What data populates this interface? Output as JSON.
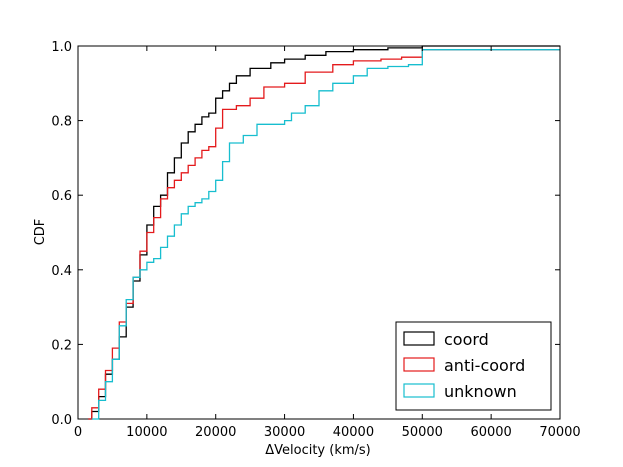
{
  "chart_data": {
    "type": "line",
    "step": true,
    "xlabel": "ΔVelocity (km/s)",
    "ylabel": "CDF",
    "xlim": [
      0,
      70000
    ],
    "ylim": [
      0,
      1.0
    ],
    "xticks": [
      "0",
      "10000",
      "20000",
      "30000",
      "40000",
      "50000",
      "60000",
      "70000"
    ],
    "yticks": [
      "0.0",
      "0.2",
      "0.4",
      "0.6",
      "0.8",
      "1.0"
    ],
    "grid": false,
    "legend_position": "bottom-right",
    "series": [
      {
        "name": "coord",
        "color": "#000000",
        "points": [
          [
            1500,
            0
          ],
          [
            2000,
            0.02
          ],
          [
            3000,
            0.06
          ],
          [
            4000,
            0.12
          ],
          [
            5000,
            0.16
          ],
          [
            6000,
            0.22
          ],
          [
            7000,
            0.3
          ],
          [
            8000,
            0.37
          ],
          [
            9000,
            0.44
          ],
          [
            10000,
            0.52
          ],
          [
            11000,
            0.57
          ],
          [
            12000,
            0.6
          ],
          [
            13000,
            0.66
          ],
          [
            14000,
            0.7
          ],
          [
            15000,
            0.74
          ],
          [
            16000,
            0.77
          ],
          [
            17000,
            0.79
          ],
          [
            18000,
            0.81
          ],
          [
            19000,
            0.82
          ],
          [
            20000,
            0.86
          ],
          [
            21000,
            0.88
          ],
          [
            22000,
            0.9
          ],
          [
            23000,
            0.92
          ],
          [
            25000,
            0.94
          ],
          [
            28000,
            0.955
          ],
          [
            30000,
            0.965
          ],
          [
            33000,
            0.975
          ],
          [
            36000,
            0.985
          ],
          [
            40000,
            0.99
          ],
          [
            45000,
            0.995
          ],
          [
            50000,
            1.0
          ],
          [
            70000,
            1.0
          ]
        ]
      },
      {
        "name": "anti-coord",
        "color": "#e41a1c",
        "points": [
          [
            1500,
            0
          ],
          [
            2000,
            0.03
          ],
          [
            3000,
            0.08
          ],
          [
            4000,
            0.13
          ],
          [
            5000,
            0.19
          ],
          [
            6000,
            0.26
          ],
          [
            7000,
            0.31
          ],
          [
            8000,
            0.38
          ],
          [
            9000,
            0.45
          ],
          [
            10000,
            0.5
          ],
          [
            11000,
            0.54
          ],
          [
            12000,
            0.59
          ],
          [
            13000,
            0.62
          ],
          [
            14000,
            0.64
          ],
          [
            15000,
            0.66
          ],
          [
            16000,
            0.68
          ],
          [
            17000,
            0.7
          ],
          [
            18000,
            0.72
          ],
          [
            19000,
            0.73
          ],
          [
            20000,
            0.78
          ],
          [
            21000,
            0.83
          ],
          [
            23000,
            0.84
          ],
          [
            25000,
            0.86
          ],
          [
            27000,
            0.89
          ],
          [
            30000,
            0.9
          ],
          [
            33000,
            0.93
          ],
          [
            37000,
            0.95
          ],
          [
            40000,
            0.96
          ],
          [
            44000,
            0.965
          ],
          [
            47000,
            0.97
          ],
          [
            50000,
            0.99
          ],
          [
            70000,
            0.99
          ]
        ]
      },
      {
        "name": "unknown",
        "color": "#17becf",
        "points": [
          [
            2000,
            0
          ],
          [
            3000,
            0.05
          ],
          [
            4000,
            0.1
          ],
          [
            5000,
            0.16
          ],
          [
            6000,
            0.25
          ],
          [
            7000,
            0.32
          ],
          [
            8000,
            0.38
          ],
          [
            9000,
            0.4
          ],
          [
            10000,
            0.42
          ],
          [
            11000,
            0.43
          ],
          [
            12000,
            0.46
          ],
          [
            13000,
            0.49
          ],
          [
            14000,
            0.52
          ],
          [
            15000,
            0.55
          ],
          [
            16000,
            0.57
          ],
          [
            17000,
            0.58
          ],
          [
            18000,
            0.59
          ],
          [
            19000,
            0.61
          ],
          [
            20000,
            0.64
          ],
          [
            21000,
            0.69
          ],
          [
            22000,
            0.74
          ],
          [
            24000,
            0.76
          ],
          [
            26000,
            0.79
          ],
          [
            30000,
            0.8
          ],
          [
            31000,
            0.82
          ],
          [
            33000,
            0.84
          ],
          [
            35000,
            0.88
          ],
          [
            37000,
            0.9
          ],
          [
            40000,
            0.92
          ],
          [
            42000,
            0.94
          ],
          [
            45000,
            0.945
          ],
          [
            48000,
            0.95
          ],
          [
            50000,
            0.99
          ],
          [
            70000,
            0.99
          ]
        ]
      }
    ]
  }
}
